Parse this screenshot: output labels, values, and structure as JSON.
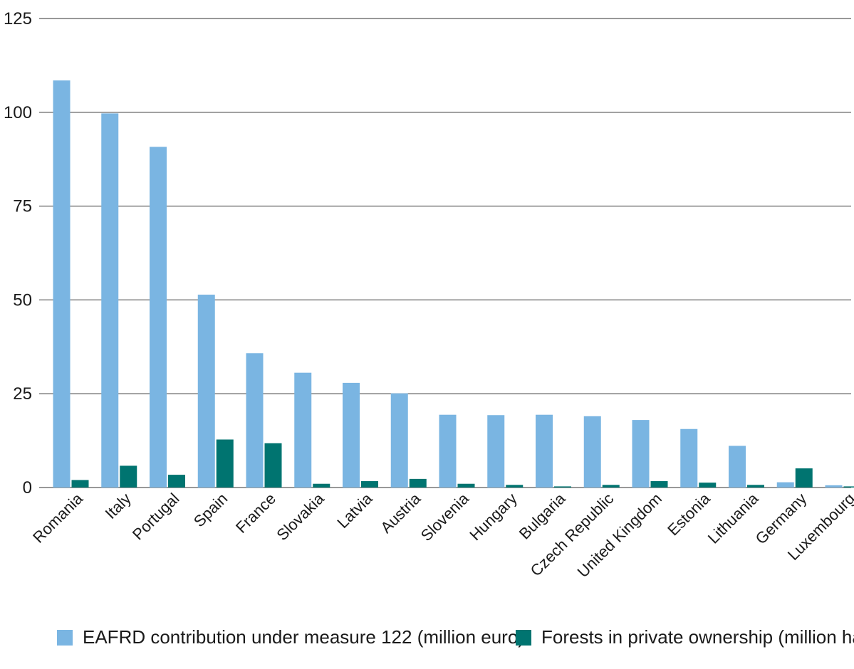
{
  "colors": {
    "eafrd": "#7ab5e2",
    "forests": "#007470",
    "grid": "#333333",
    "text": "#1a1a1a"
  },
  "legend": {
    "items": [
      {
        "label": "EAFRD contribution under measure 122 (million euro)"
      },
      {
        "label": "Forests in private ownership (million ha)"
      }
    ]
  },
  "chart_data": {
    "type": "bar",
    "categories": [
      "Romania",
      "Italy",
      "Portugal",
      "Spain",
      "France",
      "Slovakia",
      "Latvia",
      "Austria",
      "Slovenia",
      "Hungary",
      "Bulgaria",
      "Czech Republic",
      "United Kingdom",
      "Estonia",
      "Lithuania",
      "Germany",
      "Luxembourg"
    ],
    "series": [
      {
        "name": "EAFRD contribution under measure 122 (million euro)",
        "values": [
          108.5,
          99.7,
          90.8,
          51.4,
          35.8,
          30.6,
          27.9,
          25.1,
          19.4,
          19.3,
          19.4,
          19.0,
          18.0,
          15.6,
          11.1,
          1.4,
          0.6
        ]
      },
      {
        "name": "Forests in private ownership (million ha)",
        "values": [
          2.0,
          5.8,
          3.4,
          12.8,
          11.8,
          1.0,
          1.7,
          2.3,
          1.0,
          0.7,
          0.3,
          0.7,
          1.7,
          1.3,
          0.7,
          5.1,
          0.3
        ]
      }
    ],
    "yticks": [
      0,
      25,
      50,
      75,
      100,
      125
    ],
    "ylim": [
      0,
      125
    ],
    "grid": true,
    "legend_position": "bottom",
    "title": "",
    "xlabel": "",
    "ylabel": ""
  }
}
